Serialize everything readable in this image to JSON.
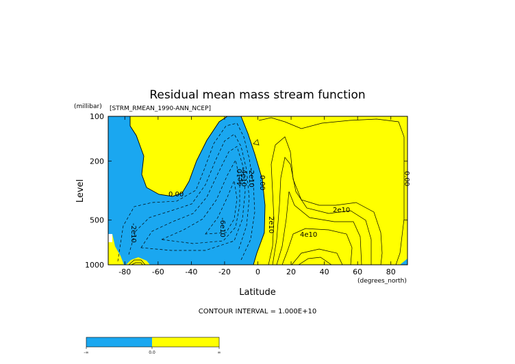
{
  "chart_data": {
    "type": "contour",
    "title": "Residual mean mass stream function",
    "subtitle": "[STRM_RMEAN_1990-ANN_NCEP]",
    "xlabel": "Latitude",
    "xunits": "(degrees_north)",
    "ylabel": "Level",
    "yunits": "(millibar)",
    "xlim": [
      -90,
      90
    ],
    "ylim": [
      1000,
      100
    ],
    "y_scale": "log",
    "x_ticks": [
      "-80",
      "-60",
      "-40",
      "-20",
      "0",
      "20",
      "40",
      "60",
      "80"
    ],
    "y_ticks": [
      "100",
      "200",
      "500",
      "1000"
    ],
    "contour_interval_text": "CONTOUR INTERVAL = 1.000E+10",
    "contour_labels": [
      "0.00",
      "0.00",
      "-2e10",
      "-4e10",
      "-6e10",
      "-2e10",
      "2e10",
      "4e10",
      "2e10",
      "4e10",
      "0.00"
    ],
    "legend_ticks": [
      "-∞",
      "0.0",
      "∞"
    ],
    "colors": {
      "negative": "#1aa7f0",
      "positive": "#ffff00",
      "background": "#ffffff"
    },
    "grid": false,
    "legend_placement": "bottom-left"
  }
}
